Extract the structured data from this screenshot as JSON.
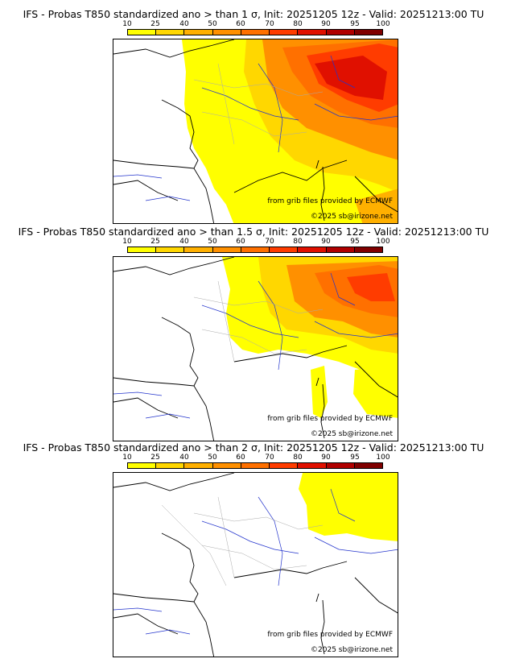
{
  "panels": [
    {
      "title": "IFS - Probas T850  standardized ano > than 1 σ, Init: 20251205 12z - Valid: 20251213:00 TU",
      "credit_source": "from grib files provided by ECMWF",
      "credit_copyright": "©2025 sb@irizone.net"
    },
    {
      "title": "IFS - Probas T850  standardized ano > than 1.5 σ, Init: 20251205 12z - Valid: 20251213:00 TU",
      "credit_source": "from grib files provided by ECMWF",
      "credit_copyright": "©2025 sb@irizone.net"
    },
    {
      "title": "IFS - Probas T850  standardized ano > than 2 σ, Init: 20251205 12z - Valid: 20251213:00 TU",
      "credit_source": "from grib files provided by ECMWF",
      "credit_copyright": "©2025 sb@irizone.net"
    }
  ],
  "colorbar": {
    "ticks": [
      "10",
      "25",
      "40",
      "50",
      "60",
      "70",
      "80",
      "90",
      "95",
      "100"
    ],
    "colors": [
      "#ffff00",
      "#ffd700",
      "#ffb000",
      "#ff9000",
      "#ff7000",
      "#ff3c00",
      "#e01000",
      "#b00000",
      "#800000"
    ]
  },
  "colors": {
    "land_outline": "#000000",
    "river": "#2233cc",
    "region_border": "#aaaaaa"
  }
}
